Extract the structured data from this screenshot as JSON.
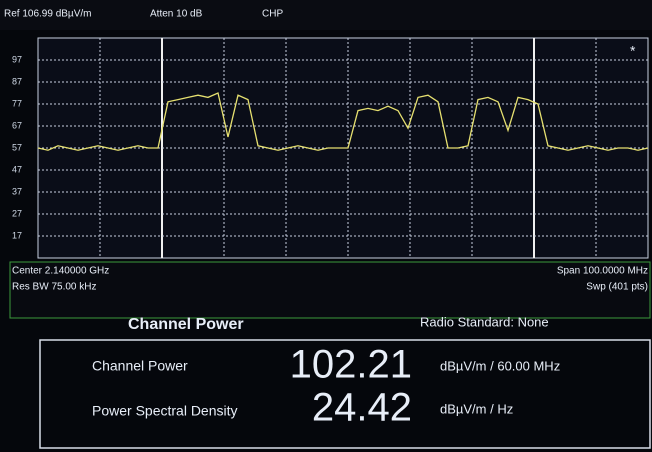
{
  "header": {
    "ref": "Ref 106.99 dBµV/m",
    "atten": "Atten 10 dB",
    "mode": "CHP"
  },
  "chart_data": {
    "type": "line",
    "color": "#e6e070",
    "ylim": [
      7,
      107
    ],
    "yticks": [
      17,
      27,
      37,
      47,
      57,
      67,
      77,
      87,
      97
    ],
    "grid": true,
    "values": [
      57,
      56,
      58,
      57,
      56,
      57,
      58,
      57,
      56,
      57,
      58,
      57,
      57,
      78,
      79,
      80,
      81,
      80,
      82,
      62,
      81,
      79,
      58,
      57,
      56,
      57,
      58,
      57,
      56,
      57,
      57,
      57,
      74,
      75,
      74,
      76,
      74,
      66,
      80,
      81,
      78,
      57,
      57,
      58,
      79,
      80,
      78,
      65,
      80,
      79,
      77,
      58,
      57,
      56,
      57,
      58,
      57,
      56,
      57,
      57,
      56,
      57
    ]
  },
  "footer": {
    "center": "Center 2.140000 GHz",
    "span": "Span 100.0000 MHz",
    "rbw": "Res BW 75.00 kHz",
    "sweep": "Swp (401 pts)"
  },
  "panel": {
    "title": "Channel Power",
    "standard": "Radio Standard: None",
    "rows": [
      {
        "label": "Channel Power",
        "value": "102.21",
        "unit": "dBµV/m / 60.00 MHz"
      },
      {
        "label": "Power Spectral Density",
        "value": "24.42",
        "unit": "dBµV/m / Hz"
      }
    ]
  }
}
